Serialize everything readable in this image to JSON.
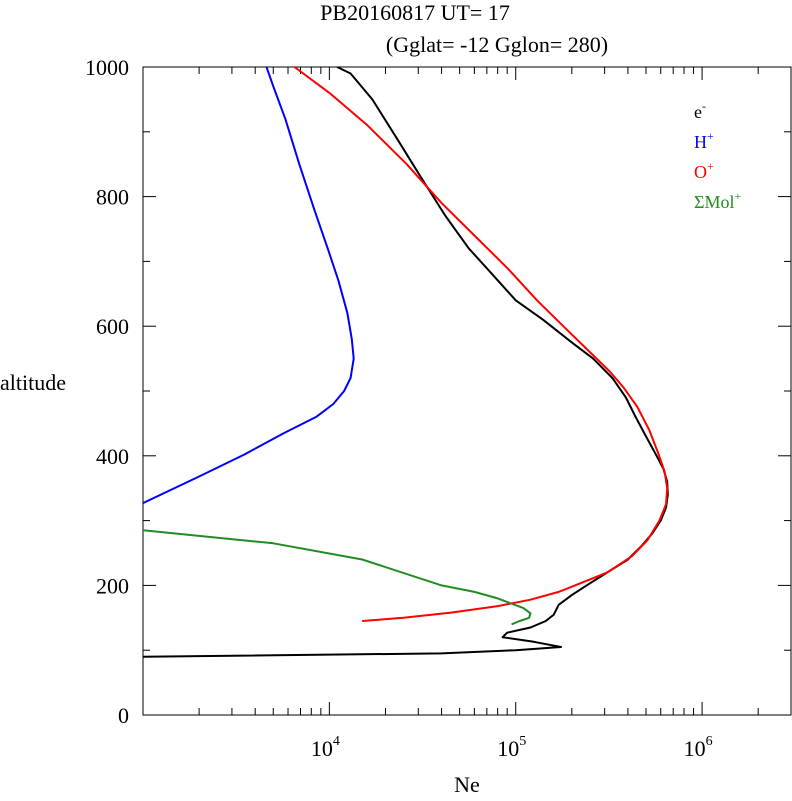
{
  "chart_data": {
    "type": "line",
    "title": {
      "line1": "PB20160817   UT=  17",
      "line2": "(Gglat= -12   Gglon=  280)"
    },
    "xlabel": "Ne",
    "ylabel": "altitude",
    "x_scale": "log",
    "xlim": [
      1000,
      3000000
    ],
    "ylim": [
      0,
      1000
    ],
    "x_ticks": [
      {
        "value": 10000,
        "base": "10",
        "exp": "4"
      },
      {
        "value": 100000,
        "base": "10",
        "exp": "5"
      },
      {
        "value": 1000000,
        "base": "10",
        "exp": "6"
      }
    ],
    "y_ticks": [
      {
        "value": 0,
        "label": "0"
      },
      {
        "value": 200,
        "label": "200"
      },
      {
        "value": 400,
        "label": "400"
      },
      {
        "value": 600,
        "label": "600"
      },
      {
        "value": 800,
        "label": "800"
      },
      {
        "value": 1000,
        "label": "1000"
      }
    ],
    "legend_position": "top-right",
    "legend": [
      {
        "base": "e",
        "sup": "-",
        "color": "#000000"
      },
      {
        "base": "H",
        "sup": "+",
        "color": "#0000ff"
      },
      {
        "base": "O",
        "sup": "+",
        "color": "#ff0000"
      },
      {
        "base": "ΣMol",
        "sup": "+",
        "color": "#228b22"
      }
    ],
    "series": [
      {
        "color": "#000000",
        "points": [
          [
            1000,
            90
          ],
          [
            40000,
            95
          ],
          [
            100000,
            100
          ],
          [
            175000,
            105
          ],
          [
            125000,
            113
          ],
          [
            85000,
            120
          ],
          [
            90000,
            127
          ],
          [
            120000,
            135
          ],
          [
            145000,
            145
          ],
          [
            160000,
            155
          ],
          [
            170000,
            170
          ],
          [
            200000,
            185
          ],
          [
            240000,
            200
          ],
          [
            310000,
            220
          ],
          [
            400000,
            240
          ],
          [
            470000,
            260
          ],
          [
            540000,
            280
          ],
          [
            600000,
            300
          ],
          [
            640000,
            320
          ],
          [
            655000,
            340
          ],
          [
            650000,
            360
          ],
          [
            620000,
            380
          ],
          [
            570000,
            400
          ],
          [
            500000,
            430
          ],
          [
            440000,
            460
          ],
          [
            390000,
            490
          ],
          [
            330000,
            520
          ],
          [
            260000,
            550
          ],
          [
            200000,
            575
          ],
          [
            140000,
            610
          ],
          [
            100000,
            640
          ],
          [
            75000,
            680
          ],
          [
            56000,
            720
          ],
          [
            42000,
            770
          ],
          [
            31000,
            830
          ],
          [
            23000,
            890
          ],
          [
            17000,
            950
          ],
          [
            13000,
            990
          ],
          [
            11000,
            1000
          ]
        ]
      },
      {
        "color": "#0000ff",
        "points": [
          [
            1000,
            327
          ],
          [
            2000,
            368
          ],
          [
            3500,
            402
          ],
          [
            5700,
            435
          ],
          [
            8500,
            460
          ],
          [
            10500,
            480
          ],
          [
            12000,
            500
          ],
          [
            13000,
            520
          ],
          [
            13500,
            550
          ],
          [
            13200,
            580
          ],
          [
            12500,
            620
          ],
          [
            11200,
            670
          ],
          [
            9800,
            720
          ],
          [
            8300,
            780
          ],
          [
            6900,
            850
          ],
          [
            5800,
            920
          ],
          [
            5000,
            970
          ],
          [
            4600,
            1000
          ]
        ]
      },
      {
        "color": "#ff0000",
        "points": [
          [
            15000,
            145
          ],
          [
            25000,
            150
          ],
          [
            45000,
            158
          ],
          [
            80000,
            168
          ],
          [
            120000,
            178
          ],
          [
            170000,
            190
          ],
          [
            230000,
            205
          ],
          [
            310000,
            220
          ],
          [
            420000,
            245
          ],
          [
            510000,
            270
          ],
          [
            590000,
            300
          ],
          [
            640000,
            325
          ],
          [
            650000,
            350
          ],
          [
            630000,
            375
          ],
          [
            580000,
            405
          ],
          [
            520000,
            440
          ],
          [
            450000,
            475
          ],
          [
            380000,
            505
          ],
          [
            320000,
            530
          ],
          [
            250000,
            560
          ],
          [
            180000,
            600
          ],
          [
            130000,
            640
          ],
          [
            90000,
            690
          ],
          [
            60000,
            740
          ],
          [
            40000,
            790
          ],
          [
            26000,
            850
          ],
          [
            16000,
            910
          ],
          [
            10000,
            960
          ],
          [
            6500,
            1000
          ]
        ]
      },
      {
        "color": "#228b22",
        "points": [
          [
            1000,
            285
          ],
          [
            5000,
            265
          ],
          [
            15000,
            240
          ],
          [
            40000,
            200
          ],
          [
            60000,
            190
          ],
          [
            80000,
            180
          ],
          [
            110000,
            165
          ],
          [
            120000,
            157
          ],
          [
            118000,
            150
          ],
          [
            105000,
            145
          ],
          [
            95000,
            140
          ]
        ]
      }
    ]
  }
}
